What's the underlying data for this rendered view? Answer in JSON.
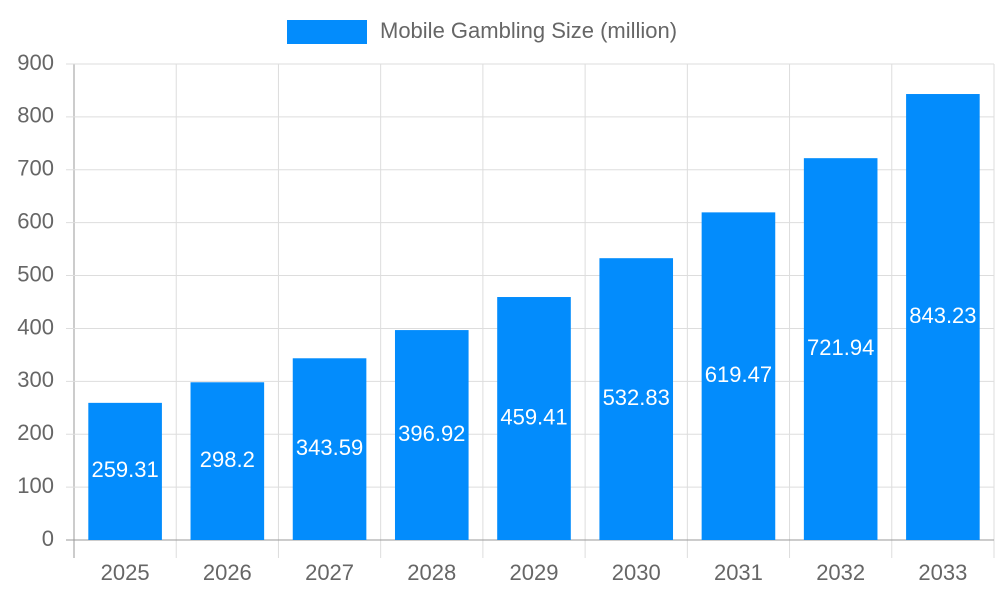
{
  "chart_data": {
    "type": "bar",
    "categories": [
      "2025",
      "2026",
      "2027",
      "2028",
      "2029",
      "2030",
      "2031",
      "2032",
      "2033"
    ],
    "series": [
      {
        "name": "Mobile Gambling Size (million)",
        "color": "#038cfc",
        "values": [
          259.31,
          298.2,
          343.59,
          396.92,
          459.41,
          532.83,
          619.47,
          721.94,
          843.23
        ]
      }
    ],
    "ylim": [
      0,
      900
    ],
    "yticks": [
      0,
      100,
      200,
      300,
      400,
      500,
      600,
      700,
      800,
      900
    ],
    "grid": true,
    "legend": "top"
  }
}
